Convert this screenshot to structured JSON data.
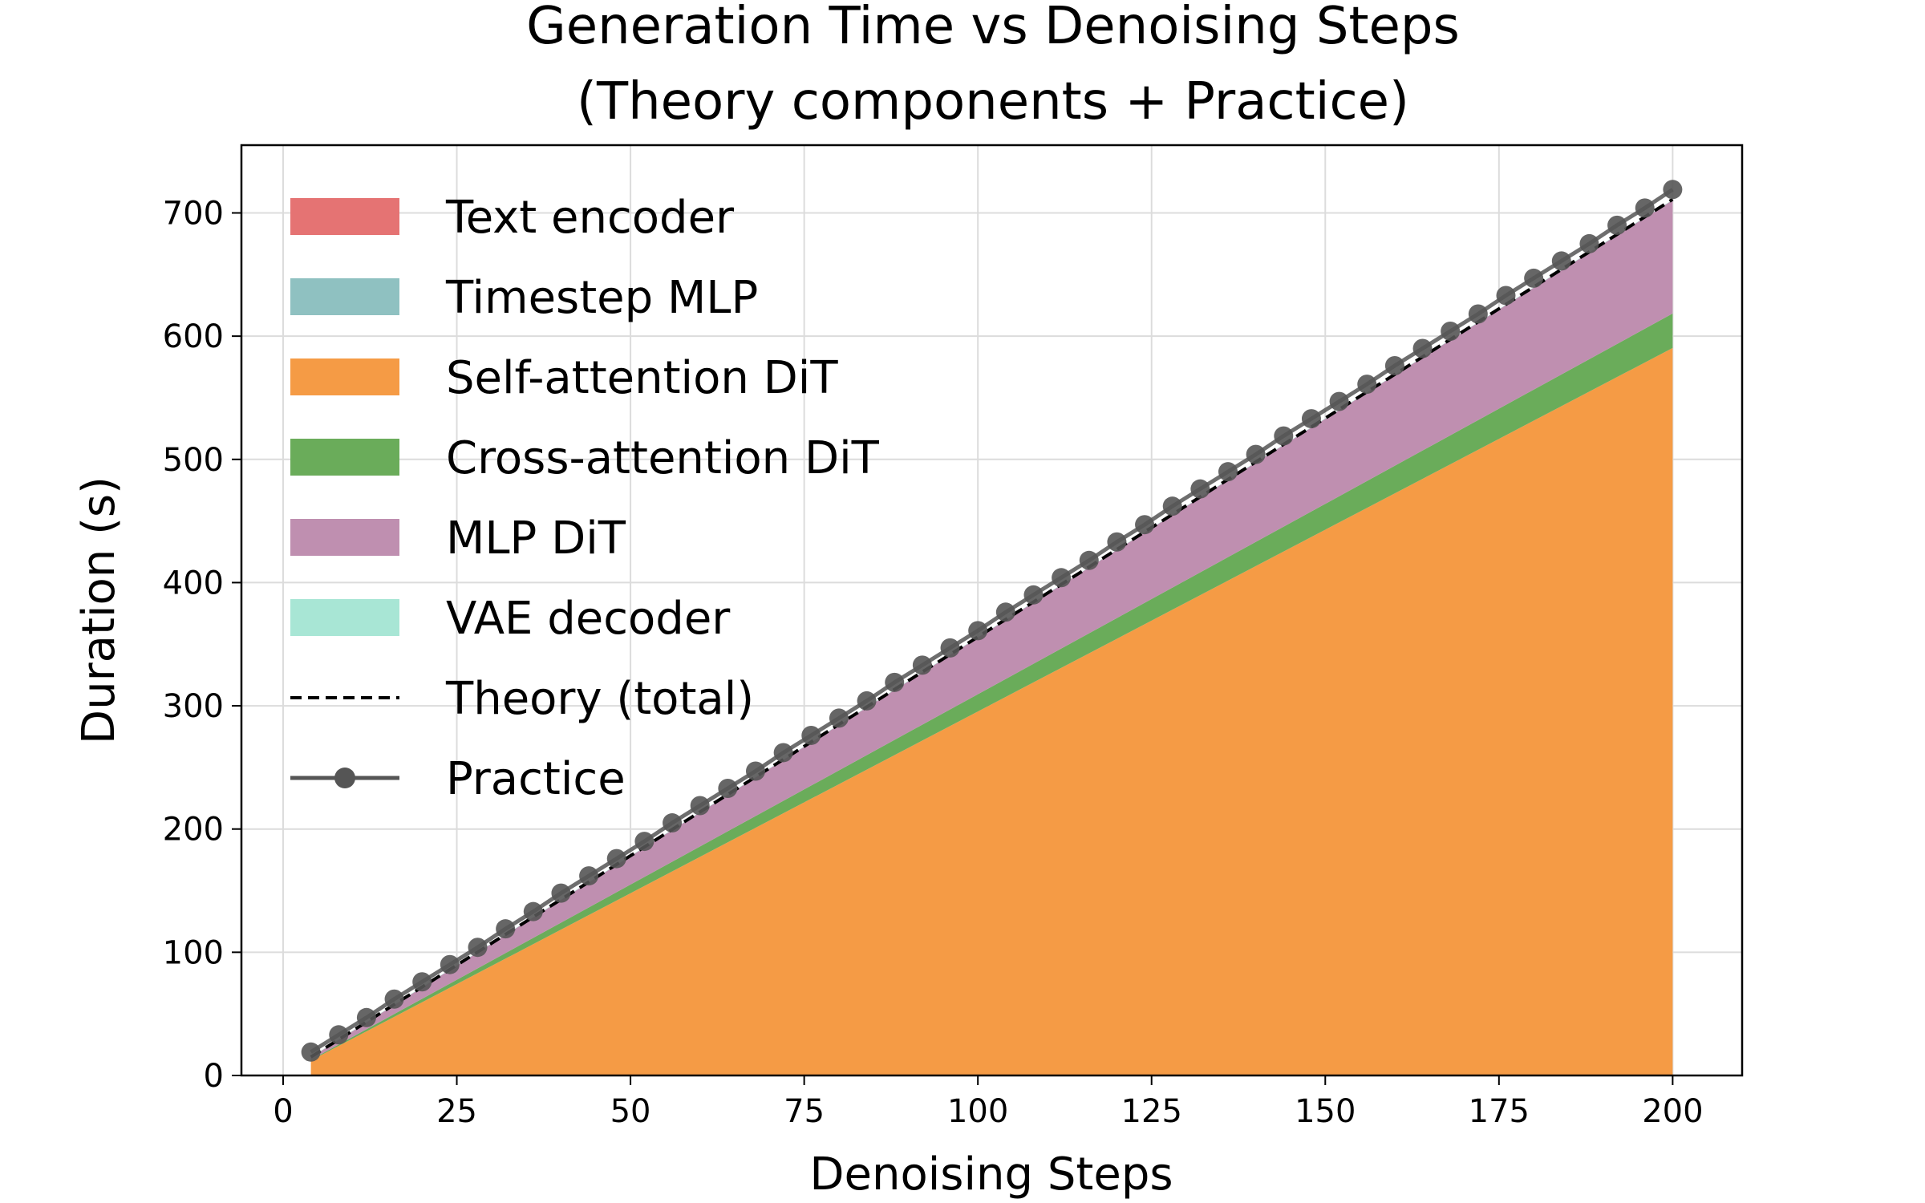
{
  "chart_data": {
    "type": "area",
    "title_lines": [
      "Generation Time vs Denoising Steps",
      "(Theory components + Practice)"
    ],
    "xlabel": "Denoising Steps",
    "ylabel": "Duration (s)",
    "xlim": [
      -6,
      210
    ],
    "ylim": [
      0,
      755
    ],
    "xticks": [
      0,
      25,
      50,
      75,
      100,
      125,
      150,
      175,
      200
    ],
    "yticks": [
      0,
      100,
      200,
      300,
      400,
      500,
      600,
      700
    ],
    "grid": true,
    "legend_position": "upper-left",
    "x": [
      4,
      200
    ],
    "stacked_series": [
      {
        "name": "Text encoder",
        "color": "#e57373",
        "values": [
          0.3,
          0.3
        ]
      },
      {
        "name": "Timestep MLP",
        "color": "#8fc1c1",
        "values": [
          0.1,
          0.1
        ]
      },
      {
        "name": "Self-attention DiT",
        "color": "#f59b45",
        "values": [
          11.8,
          590
        ]
      },
      {
        "name": "Cross-attention DiT",
        "color": "#6aac5a",
        "values": [
          0.6,
          28
        ]
      },
      {
        "name": "MLP DiT",
        "color": "#bf8fb0",
        "values": [
          1.9,
          92
        ]
      },
      {
        "name": "VAE decoder",
        "color": "#a8e6d5",
        "values": [
          0.3,
          0.3
        ]
      }
    ],
    "theory_total": {
      "name": "Theory (total)",
      "color": "#000000",
      "dash": "dashed",
      "x": [
        4,
        200
      ],
      "y": [
        15,
        711
      ]
    },
    "practice": {
      "name": "Practice",
      "color": "#555555",
      "x": [
        4,
        8,
        12,
        16,
        20,
        24,
        28,
        32,
        36,
        40,
        44,
        48,
        52,
        56,
        60,
        64,
        68,
        72,
        76,
        80,
        84,
        88,
        92,
        96,
        100,
        104,
        108,
        112,
        116,
        120,
        124,
        128,
        132,
        136,
        140,
        144,
        148,
        152,
        156,
        160,
        164,
        168,
        172,
        176,
        180,
        184,
        188,
        192,
        196,
        200
      ],
      "y": [
        19,
        33,
        47,
        62,
        76,
        90,
        104,
        119,
        133,
        148,
        162,
        176,
        190,
        205,
        219,
        233,
        247,
        262,
        276,
        290,
        304,
        319,
        333,
        347,
        361,
        376,
        390,
        404,
        418,
        433,
        447,
        462,
        476,
        490,
        504,
        519,
        533,
        547,
        561,
        576,
        590,
        604,
        618,
        633,
        647,
        661,
        675,
        690,
        704,
        719
      ]
    }
  }
}
